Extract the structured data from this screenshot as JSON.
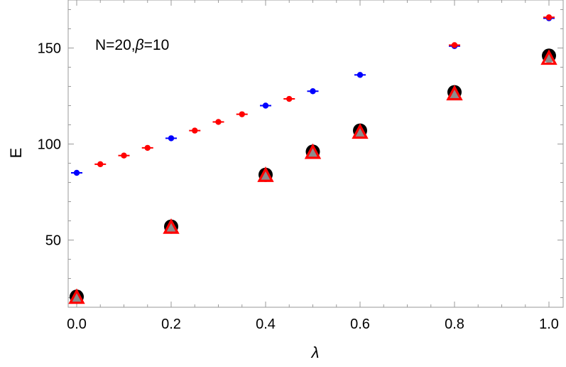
{
  "chart_data": {
    "type": "scatter",
    "title": "",
    "xlabel": "λ",
    "ylabel": "E",
    "xlim": [
      0,
      1.0
    ],
    "ylim": [
      15,
      175
    ],
    "grid": false,
    "xticks": [
      0.0,
      0.2,
      0.4,
      0.6,
      0.8,
      1.0
    ],
    "xtick_labels": [
      "0.0",
      "0.2",
      "0.4",
      "0.6",
      "0.8",
      "1.0"
    ],
    "yticks": [
      50,
      100,
      150
    ],
    "ytick_labels": [
      "50",
      "100",
      "150"
    ],
    "annotation": {
      "prefix": "N=20,",
      "symbol": "β",
      "suffix": "=10"
    },
    "series": [
      {
        "marker": "dot-errorbar",
        "color": "#0000ff",
        "x": [
          0.0,
          0.2,
          0.4,
          0.5,
          0.6,
          0.8,
          1.0
        ],
        "y": [
          85,
          103,
          120,
          127.5,
          136,
          151,
          165.5
        ]
      },
      {
        "marker": "dot-errorbar",
        "color": "#ff0000",
        "x": [
          0.05,
          0.1,
          0.15,
          0.25,
          0.3,
          0.35,
          0.45,
          0.8,
          1.0
        ],
        "y": [
          89.5,
          94,
          98,
          107,
          111.5,
          115.5,
          123.5,
          151.5,
          166
        ]
      },
      {
        "marker": "circle",
        "color": "#000000",
        "x": [
          0.0,
          0.2,
          0.4,
          0.5,
          0.6,
          0.8,
          1.0
        ],
        "y": [
          20.5,
          57,
          84,
          96,
          107,
          127,
          146
        ]
      },
      {
        "marker": "triangle",
        "color": "#ff0000",
        "x": [
          0.0,
          0.2,
          0.4,
          0.5,
          0.6,
          0.8,
          1.0
        ],
        "y": [
          20,
          56.5,
          83.5,
          95.5,
          106,
          126,
          144.5
        ]
      }
    ]
  }
}
